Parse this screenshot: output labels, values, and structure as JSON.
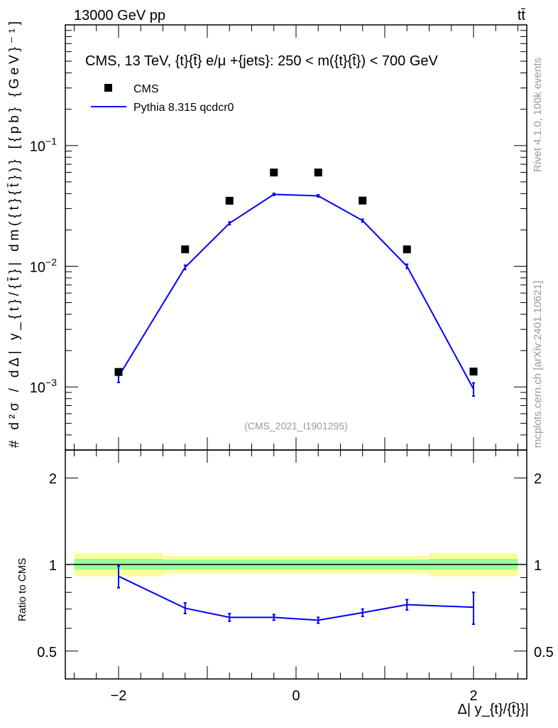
{
  "header": {
    "energy_label": "13000 GeV pp",
    "process_label": "tt̄",
    "title": "CMS, 13 TeV, {t}{t̄} e/μ +{jets}: 250 < m({t}{t̄}) < 700 GeV",
    "rivet_label": "Rivet 4.1.0,  100k events",
    "source_label": "mcplots.cern.ch [arXiv:2401.10621]",
    "analysis_id": "(CMS_2021_I1901295)"
  },
  "colors": {
    "data": "#000000",
    "mc": "#0000ff",
    "band_inner": "#99ff99",
    "band_outer": "#ffff99"
  },
  "chart_data": [
    {
      "type": "scatter",
      "title": "CMS, 13 TeV, {t}{t̄} e/μ +{jets}: 250 < m({t}{t̄}) < 700 GeV",
      "ylabel": "# d²σ / dΔ| y_{t}/{t̄}| dm({t}{t̄})} [{pb} {GeV}⁻¹]",
      "yscale": "log",
      "ylim": [
        0.0003,
        1.0
      ],
      "xlim": [
        -2.6,
        2.6
      ],
      "ytick_labels": [
        {
          "v": 0.1,
          "label": "10",
          "exp": "−1"
        },
        {
          "v": 0.01,
          "label": "10",
          "exp": "−2"
        },
        {
          "v": 0.001,
          "label": "10",
          "exp": "−3"
        }
      ],
      "legend_placement": "top-left",
      "bin_edges": [
        -2.5,
        -1.5,
        -1.0,
        -0.5,
        0.0,
        0.5,
        1.0,
        1.5,
        2.5
      ],
      "x": [
        -2.0,
        -1.25,
        -0.75,
        -0.25,
        0.25,
        0.75,
        1.25,
        2.0
      ],
      "series": [
        {
          "name": "CMS",
          "style": "markers",
          "values": [
            0.00133,
            0.0138,
            0.0349,
            0.0598,
            0.0598,
            0.035,
            0.0138,
            0.00134
          ]
        },
        {
          "name": "Pythia 8.315 qcdcr0",
          "style": "line",
          "values": [
            0.00122,
            0.0098,
            0.0227,
            0.0394,
            0.0383,
            0.0239,
            0.01,
            0.00096
          ],
          "err": [
            0.00013,
            0.0004,
            0.0006,
            0.0008,
            0.0008,
            0.0006,
            0.0004,
            0.00012
          ]
        }
      ]
    },
    {
      "type": "line",
      "ylabel": "Ratio to CMS",
      "xlabel": "Δ| y_{t}/{t̄}}|",
      "yscale": "log",
      "ylim": [
        0.4,
        2.5
      ],
      "xlim": [
        -2.6,
        2.6
      ],
      "ytick_labels": [
        {
          "v": 2,
          "label": "2"
        },
        {
          "v": 1,
          "label": "1"
        },
        {
          "v": 0.5,
          "label": "0.5"
        }
      ],
      "xtick_labels": [
        {
          "v": -2,
          "label": "−2"
        },
        {
          "v": 0,
          "label": "0"
        },
        {
          "v": 2,
          "label": "2"
        }
      ],
      "x": [
        -2.0,
        -1.25,
        -0.75,
        -0.25,
        0.25,
        0.75,
        1.25,
        2.0
      ],
      "series": [
        {
          "name": "Pythia 8.315 qcdcr0 / CMS",
          "values": [
            0.91,
            0.705,
            0.655,
            0.655,
            0.64,
            0.68,
            0.725,
            0.71
          ],
          "err": [
            0.08,
            0.03,
            0.02,
            0.015,
            0.015,
            0.02,
            0.03,
            0.09
          ]
        }
      ],
      "band_inner": [
        [
          0.96,
          1.047
        ],
        [
          0.96,
          1.04
        ],
        [
          0.96,
          1.04
        ],
        [
          0.96,
          1.04
        ],
        [
          0.96,
          1.04
        ],
        [
          0.96,
          1.04
        ],
        [
          0.96,
          1.04
        ],
        [
          0.96,
          1.047
        ]
      ],
      "band_outer": [
        [
          0.91,
          1.096
        ],
        [
          0.93,
          1.07
        ],
        [
          0.93,
          1.07
        ],
        [
          0.93,
          1.07
        ],
        [
          0.93,
          1.07
        ],
        [
          0.93,
          1.07
        ],
        [
          0.93,
          1.07
        ],
        [
          0.91,
          1.096
        ]
      ]
    }
  ]
}
